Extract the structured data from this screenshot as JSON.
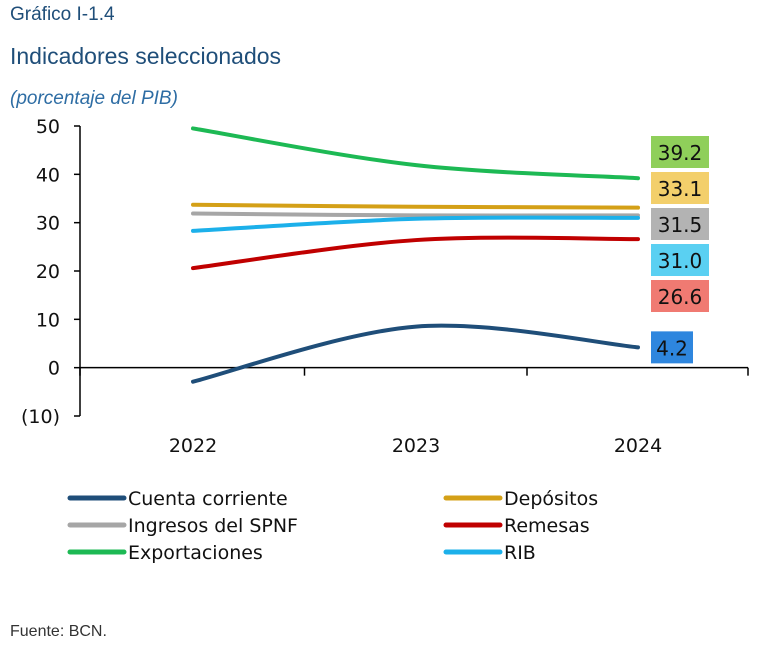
{
  "header": {
    "label": "Gráfico I-1.4",
    "title": "Indicadores seleccionados",
    "subtitle": "(porcentaje del PIB)"
  },
  "source": "Fuente: BCN.",
  "chart_data": {
    "type": "line",
    "x": [
      "2022",
      "2023",
      "2024"
    ],
    "ylim": [
      -10,
      50
    ],
    "yticks": [
      -10,
      0,
      10,
      20,
      30,
      40,
      50
    ],
    "ytick_labels": [
      "(10)",
      "0",
      "10",
      "20",
      "30",
      "40",
      "50"
    ],
    "series": [
      {
        "name": "Cuenta corriente",
        "color": "#1f4e79",
        "values": [
          -2.9,
          8.5,
          4.2
        ],
        "label": "4.2",
        "label_bg": "#2e86de"
      },
      {
        "name": "Depósitos",
        "color": "#d4a017",
        "values": [
          33.7,
          33.3,
          33.1
        ],
        "label": "33.1",
        "label_bg": "#f3cf6b"
      },
      {
        "name": "Ingresos del SPNF",
        "color": "#a6a6a6",
        "values": [
          31.9,
          31.5,
          31.5
        ],
        "label": "31.5",
        "label_bg": "#b3b3b3"
      },
      {
        "name": "Remesas",
        "color": "#c00000",
        "values": [
          20.6,
          26.4,
          26.6
        ],
        "label": "26.6",
        "label_bg": "#f07a72"
      },
      {
        "name": "Exportaciones",
        "color": "#1db954",
        "values": [
          49.5,
          41.9,
          39.2
        ],
        "label": "39.2",
        "label_bg": "#8fcf5a"
      },
      {
        "name": "RIB",
        "color": "#1cb0ea",
        "values": [
          28.3,
          30.8,
          31.0
        ],
        "label": "31.0",
        "label_bg": "#5ad0f2"
      }
    ],
    "legend_position": "bottom",
    "grid": false
  }
}
